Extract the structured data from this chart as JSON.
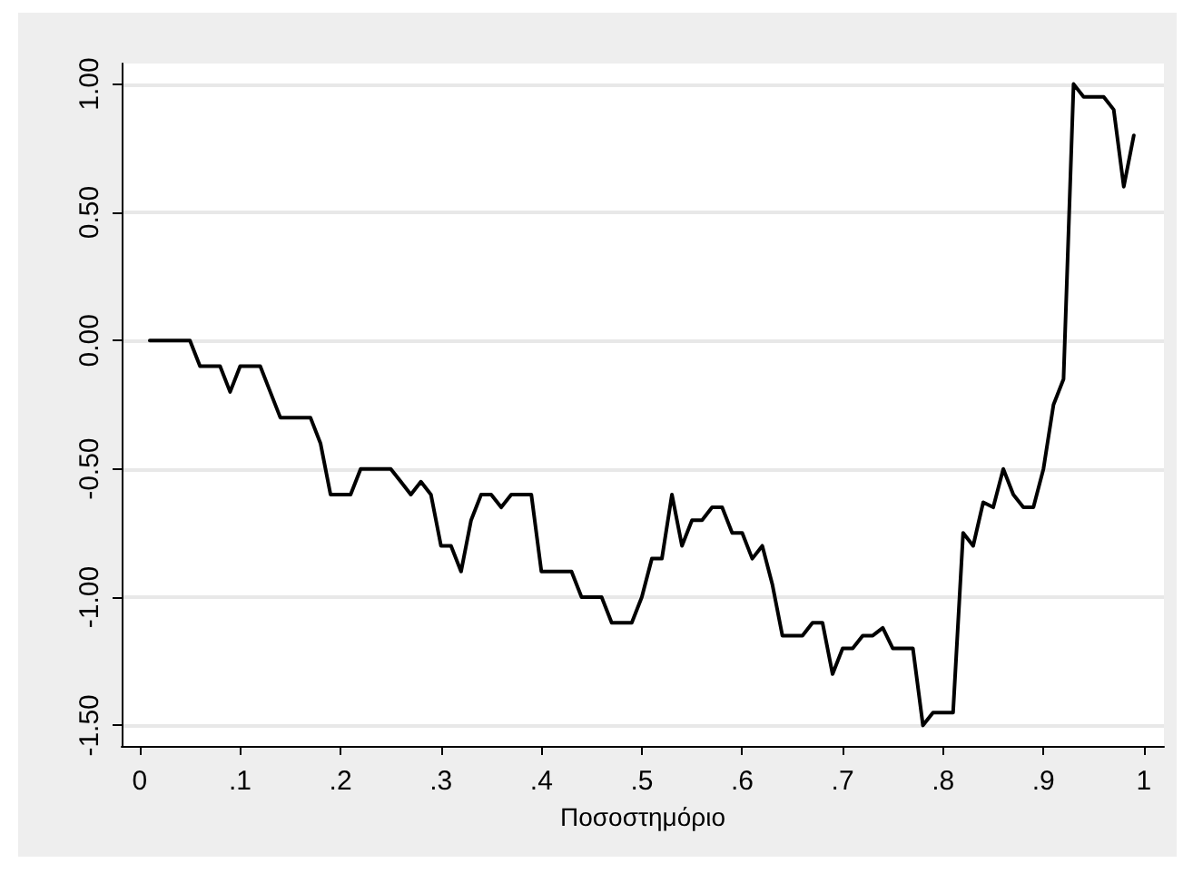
{
  "chart_data": {
    "type": "line",
    "xlabel": "Ποσοστημόριο",
    "x": [
      0.01,
      0.02,
      0.03,
      0.04,
      0.05,
      0.06,
      0.07,
      0.08,
      0.09,
      0.1,
      0.11,
      0.12,
      0.13,
      0.14,
      0.15,
      0.16,
      0.17,
      0.18,
      0.19,
      0.2,
      0.21,
      0.22,
      0.23,
      0.24,
      0.25,
      0.26,
      0.27,
      0.28,
      0.29,
      0.3,
      0.31,
      0.32,
      0.33,
      0.34,
      0.35,
      0.36,
      0.37,
      0.38,
      0.39,
      0.4,
      0.41,
      0.42,
      0.43,
      0.44,
      0.45,
      0.46,
      0.47,
      0.48,
      0.49,
      0.5,
      0.51,
      0.52,
      0.53,
      0.54,
      0.55,
      0.56,
      0.57,
      0.58,
      0.59,
      0.6,
      0.61,
      0.62,
      0.63,
      0.64,
      0.65,
      0.66,
      0.67,
      0.68,
      0.69,
      0.7,
      0.71,
      0.72,
      0.73,
      0.74,
      0.75,
      0.76,
      0.77,
      0.78,
      0.79,
      0.8,
      0.81,
      0.82,
      0.83,
      0.84,
      0.85,
      0.86,
      0.87,
      0.88,
      0.89,
      0.9,
      0.91,
      0.92,
      0.93,
      0.94,
      0.95,
      0.96,
      0.97,
      0.98,
      0.99
    ],
    "series": [
      {
        "color": "#000000",
        "values": [
          0,
          0,
          0,
          0,
          0,
          -0.1,
          -0.1,
          -0.1,
          -0.2,
          -0.1,
          -0.1,
          -0.1,
          -0.2,
          -0.3,
          -0.3,
          -0.3,
          -0.3,
          -0.4,
          -0.6,
          -0.6,
          -0.6,
          -0.5,
          -0.5,
          -0.5,
          -0.5,
          -0.55,
          -0.6,
          -0.55,
          -0.6,
          -0.8,
          -0.8,
          -0.9,
          -0.7,
          -0.6,
          -0.6,
          -0.65,
          -0.6,
          -0.6,
          -0.6,
          -0.9,
          -0.9,
          -0.9,
          -0.9,
          -1.0,
          -1.0,
          -1.0,
          -1.1,
          -1.1,
          -1.1,
          -1.0,
          -0.85,
          -0.85,
          -0.6,
          -0.8,
          -0.7,
          -0.7,
          -0.65,
          -0.65,
          -0.75,
          -0.75,
          -0.85,
          -0.8,
          -0.95,
          -1.15,
          -1.15,
          -1.15,
          -1.1,
          -1.1,
          -1.3,
          -1.2,
          -1.2,
          -1.15,
          -1.15,
          -1.12,
          -1.2,
          -1.2,
          -1.2,
          -1.5,
          -1.45,
          -1.45,
          -1.45,
          -0.75,
          -0.8,
          -0.63,
          -0.65,
          -0.5,
          -0.6,
          -0.65,
          -0.65,
          -0.5,
          -0.25,
          -0.15,
          1.0,
          0.95,
          0.95,
          0.95,
          0.9,
          0.6,
          0.8
        ]
      }
    ],
    "xlim": [
      -0.018,
      1.02
    ],
    "ylim": [
      -1.58,
      1.08
    ],
    "xticks": [
      {
        "value": 0,
        "label": "0"
      },
      {
        "value": 0.1,
        "label": ".1"
      },
      {
        "value": 0.2,
        "label": ".2"
      },
      {
        "value": 0.3,
        "label": ".3"
      },
      {
        "value": 0.4,
        "label": ".4"
      },
      {
        "value": 0.5,
        "label": ".5"
      },
      {
        "value": 0.6,
        "label": ".6"
      },
      {
        "value": 0.7,
        "label": ".7"
      },
      {
        "value": 0.8,
        "label": ".8"
      },
      {
        "value": 0.9,
        "label": ".9"
      },
      {
        "value": 1,
        "label": "1"
      }
    ],
    "yticks": [
      {
        "value": -1.5,
        "label": "-1.50"
      },
      {
        "value": -1,
        "label": "-1.00"
      },
      {
        "value": -0.5,
        "label": "-0.50"
      },
      {
        "value": 0,
        "label": "0.00"
      },
      {
        "value": 0.5,
        "label": "0.50"
      },
      {
        "value": 1,
        "label": "1.00"
      }
    ],
    "grid": "y",
    "marker": "none",
    "line_style": "solid"
  }
}
